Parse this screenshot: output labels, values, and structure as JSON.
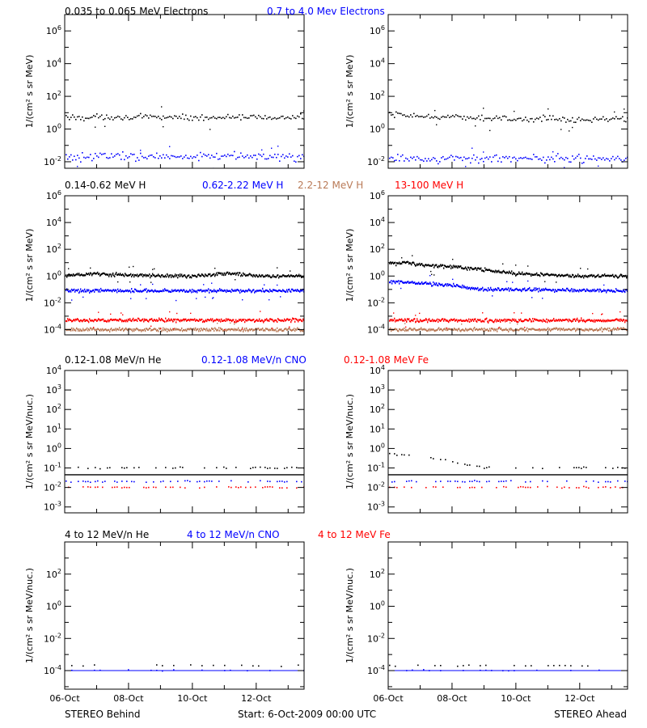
{
  "figure": {
    "footer": {
      "left": "STEREO Behind",
      "center": "Start:  6-Oct-2009 00:00 UTC",
      "right": "STEREO Ahead"
    }
  },
  "rows": [
    {
      "ylabel": "1/(cm² s sr MeV)",
      "labels": [
        {
          "text": "0.035 to 0.065 MeV Electrons",
          "color": "#000000"
        },
        {
          "text": "0.7 to 4.0 Mev Electrons",
          "color": "#0000ff"
        }
      ]
    },
    {
      "ylabel": "1/(cm² s sr MeV)",
      "labels": [
        {
          "text": "0.14-0.62 MeV H",
          "color": "#000000"
        },
        {
          "text": "0.62-2.22 MeV H",
          "color": "#0000ff"
        },
        {
          "text": "2.2-12 MeV H",
          "color": "#b97a57"
        },
        {
          "text": "13-100 MeV H",
          "color": "#ff0000"
        }
      ]
    },
    {
      "ylabel": "1/(cm² s sr MeV/nuc.)",
      "labels": [
        {
          "text": "0.12-1.08 MeV/n He",
          "color": "#000000"
        },
        {
          "text": "0.12-1.08 MeV/n CNO",
          "color": "#0000ff"
        },
        {
          "text": "0.12-1.08 MeV Fe",
          "color": "#ff0000"
        }
      ]
    },
    {
      "ylabel": "1/(cm² s sr MeV/nuc.)",
      "labels": [
        {
          "text": "4 to 12 MeV/n He",
          "color": "#000000"
        },
        {
          "text": "4 to 12 MeV/n CNO",
          "color": "#0000ff"
        },
        {
          "text": "4 to 12 MeV Fe",
          "color": "#ff0000"
        }
      ]
    }
  ],
  "chart_data": [
    {
      "type": "scatter",
      "spacecraft": "STEREO Behind",
      "ylog": true,
      "ylim": [
        0.004,
        10000000
      ],
      "yticks": [
        0.01,
        1,
        100,
        10000,
        1000000
      ],
      "xlim": [
        "2009-10-06",
        "2009-10-13 12:00"
      ],
      "xticks": [
        "06-Oct",
        "08-Oct",
        "10-Oct",
        "12-Oct"
      ],
      "series": [
        {
          "name": "0.035 to 0.065 MeV Electrons",
          "color": "#000000",
          "x": [
            "2009-10-06",
            "2009-10-08",
            "2009-10-10",
            "2009-10-12",
            "2009-10-13 12:00"
          ],
          "values": [
            5,
            5,
            5,
            5,
            5
          ]
        },
        {
          "name": "0.7 to 4.0 Mev Electrons",
          "color": "#0000ff",
          "x": [
            "2009-10-06",
            "2009-10-08",
            "2009-10-10",
            "2009-10-12",
            "2009-10-13 12:00"
          ],
          "values": [
            0.02,
            0.02,
            0.02,
            0.02,
            0.02
          ]
        }
      ]
    },
    {
      "type": "scatter",
      "spacecraft": "STEREO Ahead",
      "ylog": true,
      "ylim": [
        0.004,
        10000000
      ],
      "yticks": [
        0.01,
        1,
        100,
        10000,
        1000000
      ],
      "xlim": [
        "2009-10-06",
        "2009-10-13 12:00"
      ],
      "xticks": [
        "06-Oct",
        "08-Oct",
        "10-Oct",
        "12-Oct"
      ],
      "series": [
        {
          "name": "0.035 to 0.065 MeV Electrons",
          "color": "#000000",
          "x": [
            "2009-10-06",
            "2009-10-08",
            "2009-10-10",
            "2009-10-12",
            "2009-10-13 12:00"
          ],
          "values": [
            7,
            5,
            4,
            4,
            4
          ]
        },
        {
          "name": "0.7 to 4.0 Mev Electrons",
          "color": "#0000ff",
          "x": [
            "2009-10-06",
            "2009-10-08",
            "2009-10-10",
            "2009-10-12",
            "2009-10-13 12:00"
          ],
          "values": [
            0.015,
            0.015,
            0.015,
            0.015,
            0.015
          ]
        }
      ]
    },
    {
      "type": "scatter",
      "spacecraft": "STEREO Behind",
      "ylog": true,
      "ylim": [
        4e-05,
        1000000
      ],
      "yticks": [
        0.0001,
        0.01,
        1,
        100,
        10000,
        1000000
      ],
      "xlim": [
        "2009-10-06",
        "2009-10-13 12:00"
      ],
      "xticks": [
        "06-Oct",
        "08-Oct",
        "10-Oct",
        "12-Oct"
      ],
      "series": [
        {
          "name": "0.14-0.62 MeV H",
          "color": "#000000",
          "x": [
            "2009-10-06",
            "2009-10-07",
            "2009-10-09",
            "2009-10-10",
            "2009-10-11 04:00",
            "2009-10-12",
            "2009-10-13 12:00"
          ],
          "values": [
            1.1,
            1.4,
            1,
            1,
            1.7,
            1,
            1
          ]
        },
        {
          "name": "0.62-2.22 MeV H",
          "color": "#0000ff",
          "x": [
            "2009-10-06",
            "2009-10-13 12:00"
          ],
          "values": [
            0.08,
            0.08
          ]
        },
        {
          "name": "2.2-12 MeV H",
          "color": "#b97a57",
          "x": [
            "2009-10-06",
            "2009-10-13 12:00"
          ],
          "values": [
            0.0001,
            0.0001
          ]
        },
        {
          "name": "13-100 MeV H",
          "color": "#ff0000",
          "x": [
            "2009-10-06",
            "2009-10-13 12:00"
          ],
          "values": [
            0.0005,
            0.0005
          ]
        }
      ]
    },
    {
      "type": "scatter",
      "spacecraft": "STEREO Ahead",
      "ylog": true,
      "ylim": [
        4e-05,
        1000000
      ],
      "yticks": [
        0.0001,
        0.01,
        1,
        100,
        10000,
        1000000
      ],
      "xlim": [
        "2009-10-06",
        "2009-10-13 12:00"
      ],
      "xticks": [
        "06-Oct",
        "08-Oct",
        "10-Oct",
        "12-Oct"
      ],
      "series": [
        {
          "name": "0.14-0.62 MeV H",
          "color": "#000000",
          "x": [
            "2009-10-06",
            "2009-10-06 12:00",
            "2009-10-07",
            "2009-10-08",
            "2009-10-09",
            "2009-10-09 12:00",
            "2009-10-10",
            "2009-10-11",
            "2009-10-12",
            "2009-10-13 12:00"
          ],
          "values": [
            8,
            10,
            7,
            5,
            3,
            2,
            1.5,
            1.2,
            1,
            1
          ]
        },
        {
          "name": "0.62-2.22 MeV H",
          "color": "#0000ff",
          "x": [
            "2009-10-06",
            "2009-10-07",
            "2009-10-08",
            "2009-10-09",
            "2009-10-10",
            "2009-10-11",
            "2009-10-13 12:00"
          ],
          "values": [
            0.4,
            0.3,
            0.2,
            0.1,
            0.1,
            0.09,
            0.08
          ]
        },
        {
          "name": "2.2-12 MeV H",
          "color": "#b97a57",
          "x": [
            "2009-10-06",
            "2009-10-13 12:00"
          ],
          "values": [
            0.0001,
            0.0001
          ]
        },
        {
          "name": "13-100 MeV H",
          "color": "#ff0000",
          "x": [
            "2009-10-06",
            "2009-10-13 12:00"
          ],
          "values": [
            0.0005,
            0.0005
          ]
        }
      ]
    },
    {
      "type": "scatter",
      "spacecraft": "STEREO Behind",
      "ylog": true,
      "ylim": [
        0.0005,
        10000
      ],
      "yticks": [
        0.001,
        0.01,
        0.1,
        1,
        10,
        100,
        1000,
        10000
      ],
      "xlim": [
        "2009-10-06",
        "2009-10-13 12:00"
      ],
      "xticks": [
        "06-Oct",
        "08-Oct",
        "10-Oct",
        "12-Oct"
      ],
      "series": [
        {
          "name": "0.12-1.08 MeV/n He",
          "color": "#000000",
          "x": [
            "2009-10-06",
            "2009-10-13 12:00"
          ],
          "values": [
            0.1,
            0.1
          ]
        },
        {
          "name": "0.12-1.08 MeV/n CNO",
          "color": "#0000ff",
          "x": [
            "2009-10-06",
            "2009-10-13 12:00"
          ],
          "values": [
            0.02,
            0.02
          ]
        },
        {
          "name": "0.12-1.08 MeV Fe",
          "color": "#ff0000",
          "x": [
            "2009-10-06",
            "2009-10-13 12:00"
          ],
          "values": [
            0.01,
            0.01
          ]
        }
      ]
    },
    {
      "type": "scatter",
      "spacecraft": "STEREO Ahead",
      "ylog": true,
      "ylim": [
        0.0005,
        10000
      ],
      "yticks": [
        0.001,
        0.01,
        0.1,
        1,
        10,
        100,
        1000,
        10000
      ],
      "xlim": [
        "2009-10-06",
        "2009-10-13 12:00"
      ],
      "xticks": [
        "06-Oct",
        "08-Oct",
        "10-Oct",
        "12-Oct"
      ],
      "series": [
        {
          "name": "0.12-1.08 MeV/n He",
          "color": "#000000",
          "x": [
            "2009-10-06",
            "2009-10-07",
            "2009-10-08",
            "2009-10-09",
            "2009-10-10",
            "2009-10-13 12:00"
          ],
          "values": [
            0.5,
            0.4,
            0.2,
            0.1,
            0.1,
            0.1
          ]
        },
        {
          "name": "0.12-1.08 MeV/n CNO",
          "color": "#0000ff",
          "x": [
            "2009-10-06",
            "2009-10-13 12:00"
          ],
          "values": [
            0.02,
            0.02
          ]
        },
        {
          "name": "0.12-1.08 MeV Fe",
          "color": "#ff0000",
          "x": [
            "2009-10-06",
            "2009-10-13 12:00"
          ],
          "values": [
            0.01,
            0.01
          ]
        }
      ]
    },
    {
      "type": "scatter",
      "spacecraft": "STEREO Behind",
      "ylog": true,
      "ylim": [
        7e-06,
        10000
      ],
      "yticks": [
        0.0001,
        0.01,
        1,
        100
      ],
      "xlim": [
        "2009-10-06",
        "2009-10-13 12:00"
      ],
      "xticks": [
        "06-Oct",
        "08-Oct",
        "10-Oct",
        "12-Oct"
      ],
      "series": [
        {
          "name": "4 to 12 MeV/n He",
          "color": "#000000",
          "x": [
            "2009-10-06",
            "2009-10-13 12:00"
          ],
          "values": [
            0.0002,
            0.0002
          ]
        },
        {
          "name": "4 to 12 MeV/n CNO",
          "color": "#0000ff",
          "x": [
            "2009-10-06",
            "2009-10-13 12:00"
          ],
          "values": [
            0.0001,
            0.0001
          ]
        },
        {
          "name": "4 to 12 MeV Fe",
          "color": "#ff0000",
          "x": [],
          "values": []
        }
      ]
    },
    {
      "type": "scatter",
      "spacecraft": "STEREO Ahead",
      "ylog": true,
      "ylim": [
        7e-06,
        10000
      ],
      "yticks": [
        0.0001,
        0.01,
        1,
        100
      ],
      "xlim": [
        "2009-10-06",
        "2009-10-13 12:00"
      ],
      "xticks": [
        "06-Oct",
        "08-Oct",
        "10-Oct",
        "12-Oct"
      ],
      "series": [
        {
          "name": "4 to 12 MeV/n He",
          "color": "#000000",
          "x": [
            "2009-10-06",
            "2009-10-13 12:00"
          ],
          "values": [
            0.0002,
            0.0002
          ]
        },
        {
          "name": "4 to 12 MeV/n CNO",
          "color": "#0000ff",
          "x": [
            "2009-10-06",
            "2009-10-13 12:00"
          ],
          "values": [
            0.0001,
            0.0001
          ]
        },
        {
          "name": "4 to 12 MeV Fe",
          "color": "#ff0000",
          "x": [],
          "values": []
        }
      ]
    }
  ]
}
